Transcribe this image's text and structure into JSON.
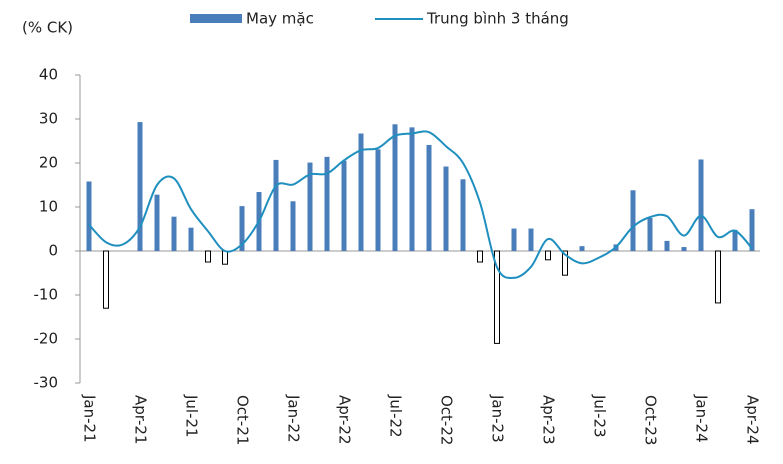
{
  "chart_data": {
    "type": "bar_line",
    "unit_label": "(% CK)",
    "categories": [
      "Jan-21",
      null,
      null,
      "Apr-21",
      null,
      null,
      "Jul-21",
      null,
      null,
      "Oct-21",
      null,
      null,
      "Jan-22",
      null,
      null,
      "Apr-22",
      null,
      null,
      "Jul-22",
      null,
      null,
      "Oct-22",
      null,
      null,
      "Jan-23",
      null,
      null,
      "Apr-23",
      null,
      null,
      "Jul-23",
      null,
      null,
      "Oct-23",
      null,
      null,
      "Jan-24",
      null,
      null,
      "Apr-24"
    ],
    "series": [
      {
        "name": "May mặc",
        "kind": "bar",
        "color": "#4a7ebb",
        "negative_color": "#ffffff",
        "negative_stroke": "#000000",
        "values": [
          15.8,
          -13,
          0,
          29.3,
          12.8,
          7.8,
          5.3,
          -2.5,
          -3,
          10.2,
          13.4,
          20.7,
          11.3,
          20.1,
          21.4,
          20.5,
          26.7,
          23.1,
          28.8,
          28.1,
          24.1,
          19.2,
          16.3,
          -2.5,
          -21,
          5.1,
          5.1,
          -2,
          -5.5,
          1.1,
          0,
          1.5,
          13.8,
          7.5,
          2.3,
          0.9,
          20.8,
          -11.8,
          4.8,
          9.5
        ]
      },
      {
        "name": "Trung bình 3 tháng",
        "kind": "line",
        "color": "#1f8fbf",
        "values": [
          6,
          2,
          1.5,
          5.5,
          15,
          16.5,
          9.5,
          4.5,
          0,
          1.5,
          6.8,
          14.8,
          15.1,
          17.4,
          17.6,
          20.6,
          22.9,
          23.4,
          26.2,
          26.7,
          27.0,
          23.8,
          20,
          11,
          -3.7,
          -6.1,
          -3.6,
          2.7,
          -0.8,
          -2.8,
          -1.5,
          0.9,
          5.5,
          7.7,
          7.9,
          3.5,
          8,
          3.2,
          4.6,
          0.6
        ]
      }
    ],
    "ylim": [
      -30,
      40
    ],
    "yticks": [
      -30,
      -20,
      -10,
      0,
      10,
      20,
      30,
      40
    ],
    "grid": false
  }
}
